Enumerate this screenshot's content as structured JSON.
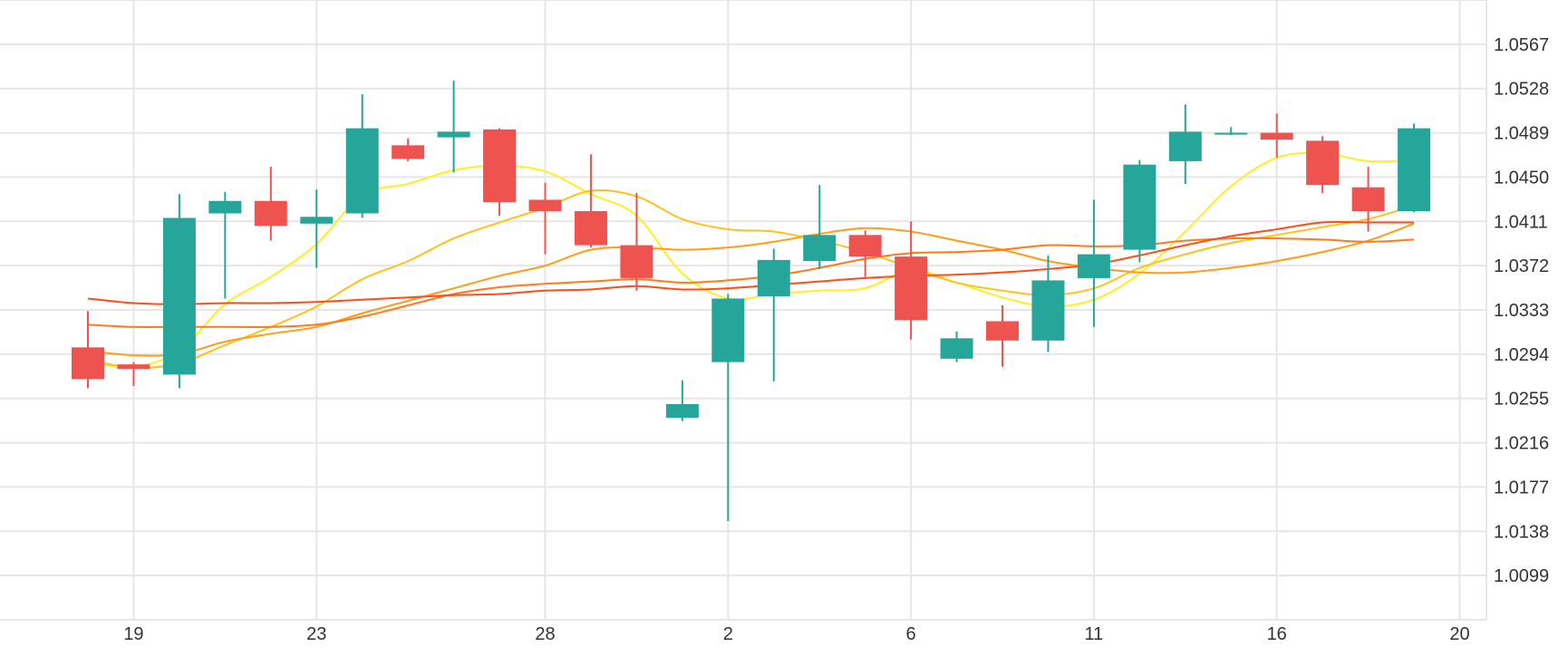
{
  "chart_data": {
    "type": "candlestick",
    "x_ticks": [
      "19",
      "23",
      "28",
      "2",
      "6",
      "11",
      "16",
      "20"
    ],
    "y_ticks": [
      "1.0567",
      "1.0528",
      "1.0489",
      "1.0450",
      "1.0411",
      "1.0372",
      "1.0333",
      "1.0294",
      "1.0255",
      "1.0216",
      "1.0177",
      "1.0138",
      "1.0099"
    ],
    "ylim": [
      1.006,
      1.0606
    ],
    "grid": true,
    "colors": {
      "up": "#26a69a",
      "down": "#ef5350",
      "grid": "#e6e6e6",
      "text": "#333333",
      "axis": "#cccccc"
    },
    "candles": [
      {
        "x": 0,
        "o": 1.03,
        "h": 1.0332,
        "l": 1.0264,
        "c": 1.0272
      },
      {
        "x": 1,
        "o": 1.0285,
        "h": 1.0287,
        "l": 1.0266,
        "c": 1.0281
      },
      {
        "x": 2,
        "o": 1.0276,
        "h": 1.0435,
        "l": 1.0264,
        "c": 1.0414
      },
      {
        "x": 3,
        "o": 1.0418,
        "h": 1.0437,
        "l": 1.0343,
        "c": 1.0429
      },
      {
        "x": 4,
        "o": 1.0429,
        "h": 1.0459,
        "l": 1.0394,
        "c": 1.0407
      },
      {
        "x": 5,
        "o": 1.0409,
        "h": 1.0439,
        "l": 1.037,
        "c": 1.0415
      },
      {
        "x": 6,
        "o": 1.0418,
        "h": 1.0523,
        "l": 1.0414,
        "c": 1.0493
      },
      {
        "x": 7,
        "o": 1.0478,
        "h": 1.0484,
        "l": 1.0464,
        "c": 1.0466
      },
      {
        "x": 8,
        "o": 1.0485,
        "h": 1.0535,
        "l": 1.0454,
        "c": 1.049
      },
      {
        "x": 9,
        "o": 1.0492,
        "h": 1.0493,
        "l": 1.0416,
        "c": 1.0428
      },
      {
        "x": 10,
        "o": 1.043,
        "h": 1.0445,
        "l": 1.0382,
        "c": 1.042
      },
      {
        "x": 11,
        "o": 1.042,
        "h": 1.047,
        "l": 1.0388,
        "c": 1.039
      },
      {
        "x": 12,
        "o": 1.039,
        "h": 1.0436,
        "l": 1.035,
        "c": 1.0361
      },
      {
        "x": 13,
        "o": 1.0238,
        "h": 1.0271,
        "l": 1.0235,
        "c": 1.025
      },
      {
        "x": 14,
        "o": 1.0287,
        "h": 1.0347,
        "l": 1.0147,
        "c": 1.0343
      },
      {
        "x": 15,
        "o": 1.0345,
        "h": 1.0387,
        "l": 1.027,
        "c": 1.0377
      },
      {
        "x": 16,
        "o": 1.0376,
        "h": 1.0443,
        "l": 1.0369,
        "c": 1.0399
      },
      {
        "x": 17,
        "o": 1.0399,
        "h": 1.0403,
        "l": 1.0362,
        "c": 1.038
      },
      {
        "x": 18,
        "o": 1.038,
        "h": 1.0411,
        "l": 1.0307,
        "c": 1.0324
      },
      {
        "x": 19,
        "o": 1.029,
        "h": 1.0314,
        "l": 1.0287,
        "c": 1.0308
      },
      {
        "x": 20,
        "o": 1.0323,
        "h": 1.0337,
        "l": 1.0283,
        "c": 1.0306
      },
      {
        "x": 21,
        "o": 1.0306,
        "h": 1.0381,
        "l": 1.0296,
        "c": 1.0359
      },
      {
        "x": 22,
        "o": 1.0361,
        "h": 1.043,
        "l": 1.0318,
        "c": 1.0382
      },
      {
        "x": 23,
        "o": 1.0386,
        "h": 1.0465,
        "l": 1.0375,
        "c": 1.0461
      },
      {
        "x": 24,
        "o": 1.0464,
        "h": 1.0514,
        "l": 1.0444,
        "c": 1.049
      },
      {
        "x": 25,
        "o": 1.0488,
        "h": 1.0494,
        "l": 1.0487,
        "c": 1.0489
      },
      {
        "x": 26,
        "o": 1.0489,
        "h": 1.0506,
        "l": 1.0467,
        "c": 1.0483
      },
      {
        "x": 27,
        "o": 1.0482,
        "h": 1.0486,
        "l": 1.0436,
        "c": 1.0443
      },
      {
        "x": 28,
        "o": 1.0441,
        "h": 1.0459,
        "l": 1.0402,
        "c": 1.042
      },
      {
        "x": 29,
        "o": 1.042,
        "h": 1.0497,
        "l": 1.0419,
        "c": 1.0493
      }
    ],
    "tick_positions": [
      1,
      5,
      10,
      14,
      18,
      22,
      26,
      30
    ],
    "moving_averages": [
      {
        "color": "#ffee22",
        "points": [
          [
            0,
            1.0287
          ],
          [
            1,
            1.0283
          ],
          [
            2,
            1.0297
          ],
          [
            3,
            1.0338
          ],
          [
            4,
            1.0362
          ],
          [
            5,
            1.0391
          ],
          [
            6,
            1.0434
          ],
          [
            7,
            1.0444
          ],
          [
            8,
            1.0456
          ],
          [
            9,
            1.046
          ],
          [
            10,
            1.0455
          ],
          [
            11,
            1.0435
          ],
          [
            12,
            1.0416
          ],
          [
            13,
            1.0365
          ],
          [
            14,
            1.0343
          ],
          [
            15,
            1.0347
          ],
          [
            16,
            1.035
          ],
          [
            17,
            1.0352
          ],
          [
            18,
            1.0368
          ],
          [
            19,
            1.0357
          ],
          [
            20,
            1.0344
          ],
          [
            21,
            1.0336
          ],
          [
            22,
            1.0342
          ],
          [
            23,
            1.0365
          ],
          [
            24,
            1.0402
          ],
          [
            25,
            1.0442
          ],
          [
            26,
            1.0467
          ],
          [
            27,
            1.0471
          ],
          [
            28,
            1.0464
          ],
          [
            29,
            1.0465
          ]
        ]
      },
      {
        "color": "#ffc21a",
        "points": [
          [
            0,
            1.0289
          ],
          [
            1,
            1.0282
          ],
          [
            2,
            1.0286
          ],
          [
            3,
            1.0302
          ],
          [
            4,
            1.0318
          ],
          [
            5,
            1.0336
          ],
          [
            6,
            1.036
          ],
          [
            7,
            1.0376
          ],
          [
            8,
            1.0396
          ],
          [
            9,
            1.041
          ],
          [
            10,
            1.0423
          ],
          [
            11,
            1.0438
          ],
          [
            12,
            1.0433
          ],
          [
            13,
            1.0413
          ],
          [
            14,
            1.0404
          ],
          [
            15,
            1.0402
          ],
          [
            16,
            1.0394
          ],
          [
            17,
            1.0384
          ],
          [
            18,
            1.037
          ],
          [
            19,
            1.0357
          ],
          [
            20,
            1.035
          ],
          [
            21,
            1.0346
          ],
          [
            22,
            1.0352
          ],
          [
            23,
            1.037
          ],
          [
            24,
            1.0382
          ],
          [
            25,
            1.0392
          ],
          [
            26,
            1.0399
          ],
          [
            27,
            1.0406
          ],
          [
            28,
            1.0413
          ],
          [
            29,
            1.0425
          ]
        ]
      },
      {
        "color": "#ff9d1a",
        "points": [
          [
            0,
            1.0297
          ],
          [
            1,
            1.0293
          ],
          [
            2,
            1.0294
          ],
          [
            3,
            1.0305
          ],
          [
            4,
            1.0312
          ],
          [
            5,
            1.0318
          ],
          [
            6,
            1.033
          ],
          [
            7,
            1.0341
          ],
          [
            8,
            1.0352
          ],
          [
            9,
            1.0363
          ],
          [
            10,
            1.0372
          ],
          [
            11,
            1.0386
          ],
          [
            12,
            1.0388
          ],
          [
            13,
            1.0386
          ],
          [
            14,
            1.0388
          ],
          [
            15,
            1.0393
          ],
          [
            16,
            1.04
          ],
          [
            17,
            1.0405
          ],
          [
            18,
            1.0402
          ],
          [
            19,
            1.0394
          ],
          [
            20,
            1.0386
          ],
          [
            21,
            1.0376
          ],
          [
            22,
            1.037
          ],
          [
            23,
            1.0366
          ],
          [
            24,
            1.0366
          ],
          [
            25,
            1.037
          ],
          [
            26,
            1.0376
          ],
          [
            27,
            1.0384
          ],
          [
            28,
            1.0394
          ],
          [
            29,
            1.0409
          ]
        ]
      },
      {
        "color": "#ff7a1a",
        "points": [
          [
            0,
            1.032
          ],
          [
            1,
            1.0318
          ],
          [
            2,
            1.0318
          ],
          [
            3,
            1.0318
          ],
          [
            4,
            1.0318
          ],
          [
            5,
            1.032
          ],
          [
            6,
            1.0327
          ],
          [
            7,
            1.0337
          ],
          [
            8,
            1.0347
          ],
          [
            9,
            1.0353
          ],
          [
            10,
            1.0356
          ],
          [
            11,
            1.0358
          ],
          [
            12,
            1.036
          ],
          [
            13,
            1.0357
          ],
          [
            14,
            1.0359
          ],
          [
            15,
            1.0363
          ],
          [
            16,
            1.037
          ],
          [
            17,
            1.0378
          ],
          [
            18,
            1.0383
          ],
          [
            19,
            1.0384
          ],
          [
            20,
            1.0386
          ],
          [
            21,
            1.039
          ],
          [
            22,
            1.0389
          ],
          [
            23,
            1.039
          ],
          [
            24,
            1.0394
          ],
          [
            25,
            1.0396
          ],
          [
            26,
            1.0396
          ],
          [
            27,
            1.0395
          ],
          [
            28,
            1.0393
          ],
          [
            29,
            1.0395
          ]
        ]
      },
      {
        "color": "#ff4d1a",
        "points": [
          [
            0,
            1.0343
          ],
          [
            1,
            1.0339
          ],
          [
            2,
            1.0338
          ],
          [
            3,
            1.0339
          ],
          [
            4,
            1.0339
          ],
          [
            5,
            1.034
          ],
          [
            6,
            1.0342
          ],
          [
            7,
            1.0344
          ],
          [
            8,
            1.0346
          ],
          [
            9,
            1.0347
          ],
          [
            10,
            1.035
          ],
          [
            11,
            1.0351
          ],
          [
            12,
            1.0354
          ],
          [
            13,
            1.0351
          ],
          [
            14,
            1.0352
          ],
          [
            15,
            1.0355
          ],
          [
            16,
            1.0358
          ],
          [
            17,
            1.0361
          ],
          [
            18,
            1.0363
          ],
          [
            19,
            1.0364
          ],
          [
            20,
            1.0366
          ],
          [
            21,
            1.0369
          ],
          [
            22,
            1.0373
          ],
          [
            23,
            1.0381
          ],
          [
            24,
            1.039
          ],
          [
            25,
            1.0398
          ],
          [
            26,
            1.0404
          ],
          [
            27,
            1.041
          ],
          [
            28,
            1.041
          ],
          [
            29,
            1.041
          ]
        ]
      }
    ]
  }
}
